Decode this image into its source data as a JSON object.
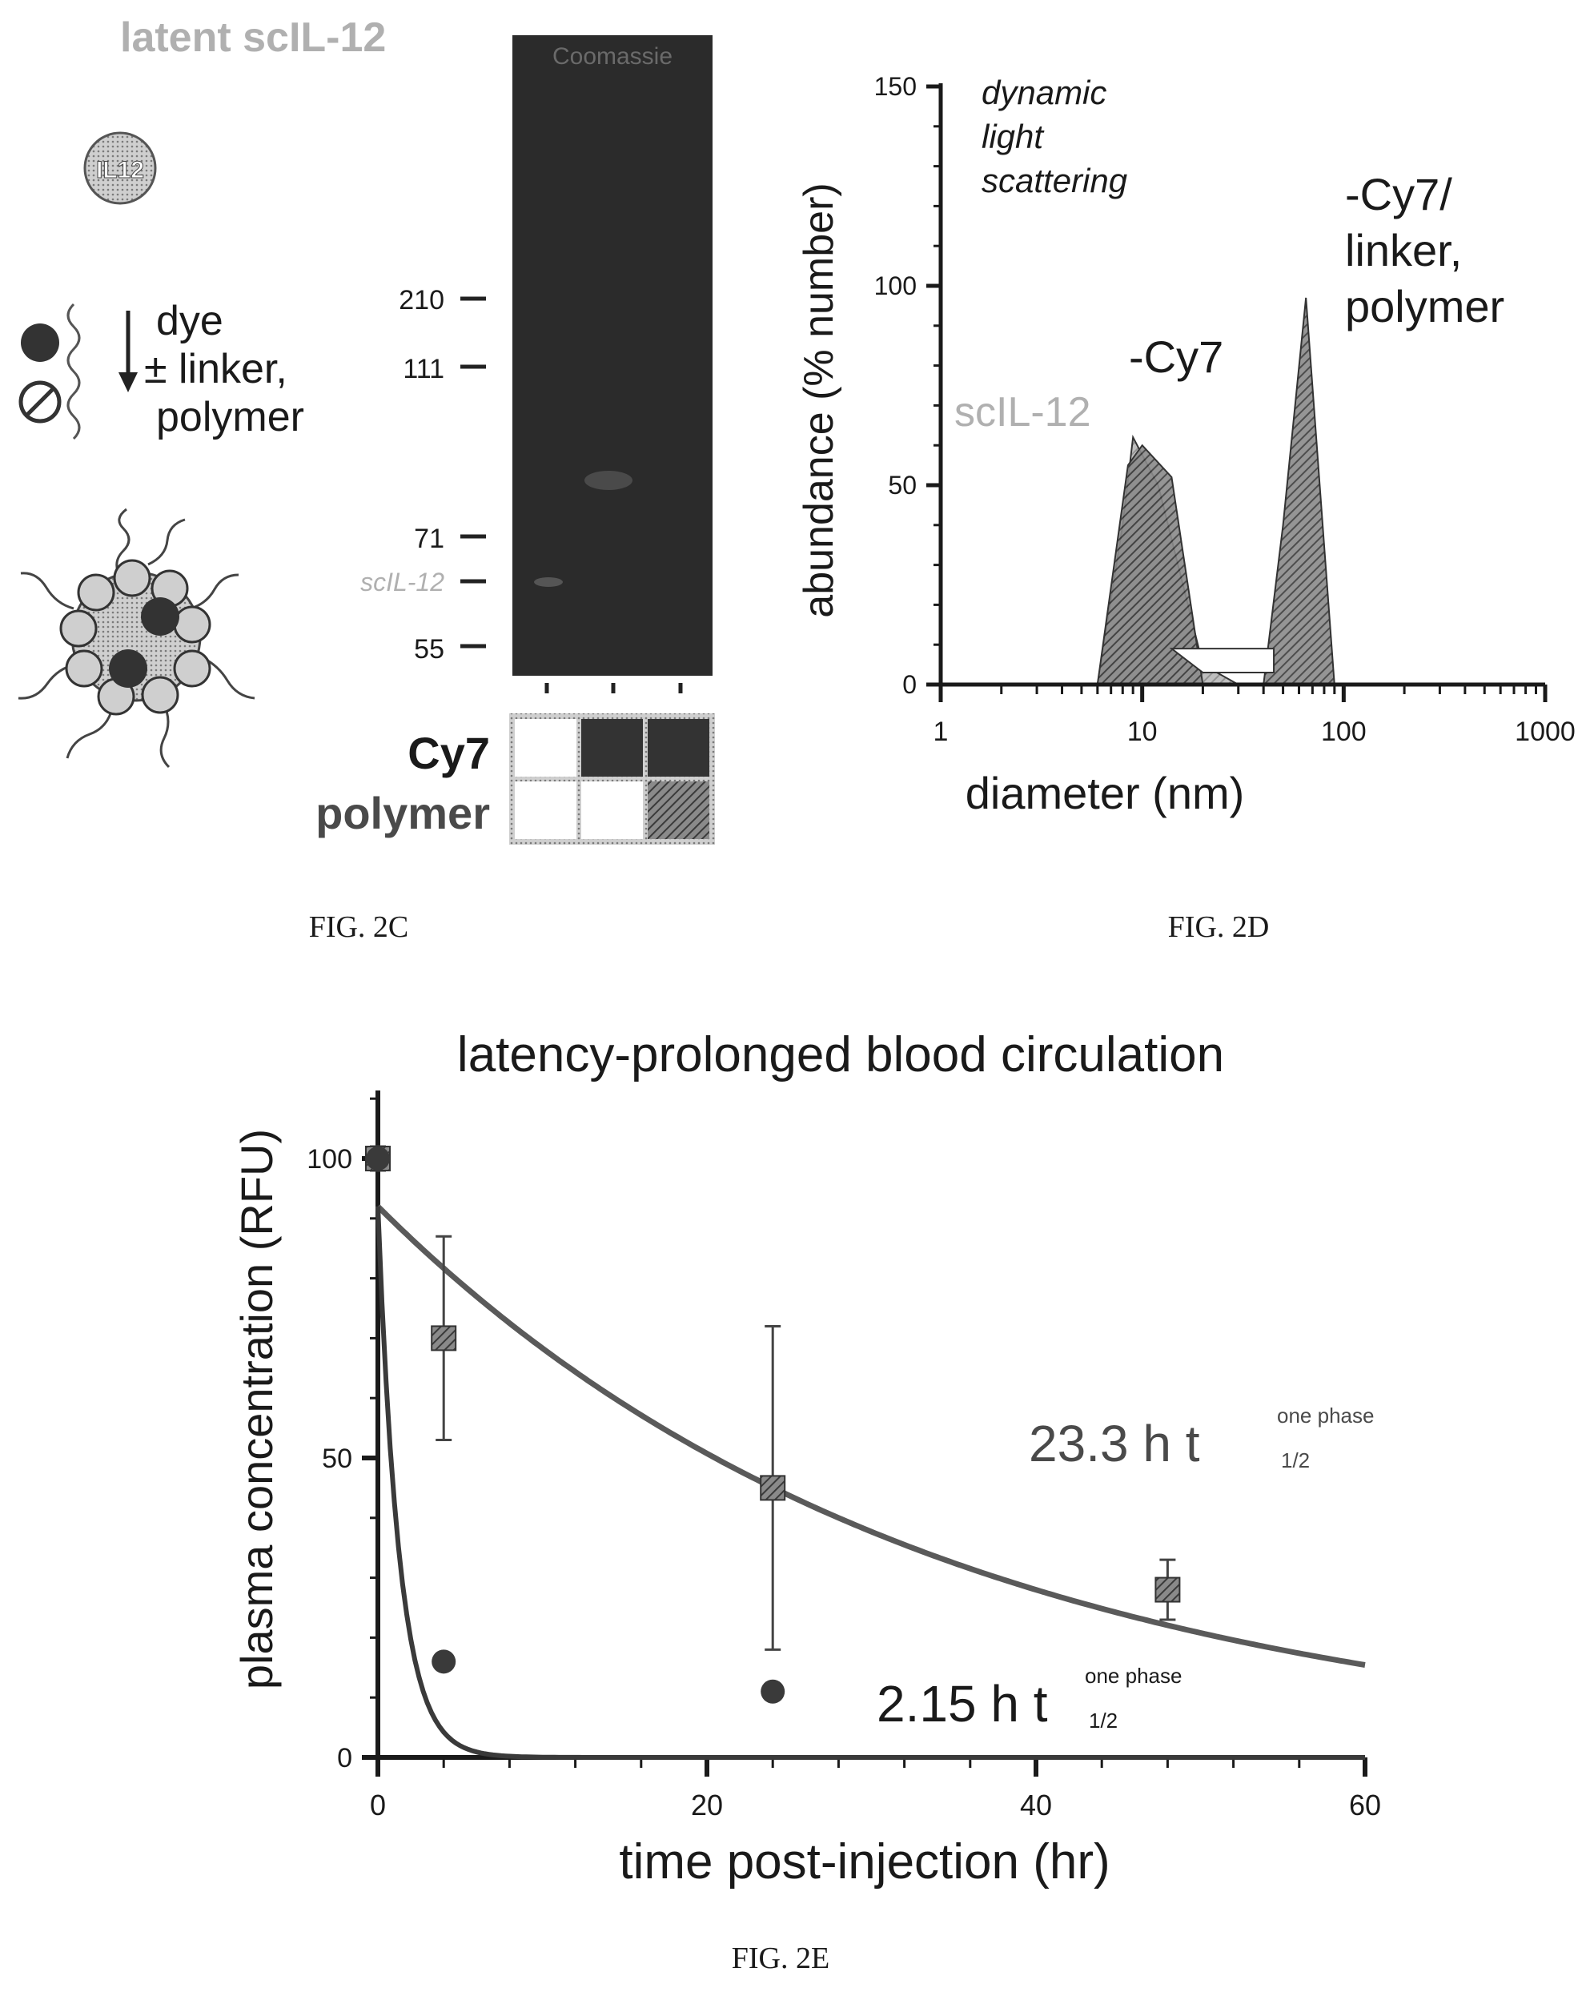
{
  "colors": {
    "ink": "#1a1a1a",
    "gel": "#2b2b2b",
    "light_label": "#b0b0b0",
    "peak_fill": "#4a4a4a",
    "hatch": "#6a6a6a",
    "series_polymer": "#5a5a5a",
    "series_free": "#3a3a3a"
  },
  "fig2c": {
    "caption": "FIG. 2C",
    "title": "latent scIL-12",
    "gel_header": "Coomassie",
    "il12_badge": "IL12",
    "reaction_text": [
      "dye",
      "± linker,",
      "polymer"
    ],
    "markers": [
      {
        "label": "210",
        "highlight": false
      },
      {
        "label": "111",
        "highlight": false
      },
      {
        "label": "71",
        "highlight": false
      },
      {
        "label": "scIL-12",
        "highlight": true
      },
      {
        "label": "55",
        "highlight": false
      }
    ],
    "row_labels": [
      "Cy7",
      "polymer"
    ],
    "lanes": [
      {
        "cy7": false,
        "polymer": false
      },
      {
        "cy7": true,
        "polymer": false
      },
      {
        "cy7": true,
        "polymer": true
      }
    ]
  },
  "chart_data": [
    {
      "type": "area",
      "figure": "FIG. 2D",
      "annotation": [
        "dynamic",
        "light",
        "scattering"
      ],
      "xlabel": "diameter (nm)",
      "ylabel": "abundance (% number)",
      "x_scale": "log",
      "xlim": [
        1,
        1000
      ],
      "ylim": [
        0,
        150
      ],
      "x_ticks": [
        1,
        10,
        100,
        1000
      ],
      "y_ticks": [
        0,
        50,
        100,
        150
      ],
      "grid": false,
      "series": [
        {
          "name": "scIL-12",
          "x": [
            6,
            8,
            9,
            12,
            20,
            30
          ],
          "y": [
            0,
            40,
            62,
            50,
            5,
            0
          ]
        },
        {
          "name": "-Cy7",
          "x": [
            6,
            8.5,
            10,
            14,
            20
          ],
          "y": [
            0,
            55,
            60,
            52,
            0
          ]
        },
        {
          "name": "-Cy7/ linker, polymer",
          "x": [
            40,
            50,
            65,
            80,
            90
          ],
          "y": [
            0,
            40,
            97,
            35,
            0
          ]
        }
      ]
    },
    {
      "type": "line",
      "figure": "FIG. 2E",
      "title": "latency-prolonged blood circulation",
      "xlabel": "time post-injection (hr)",
      "ylabel": "plasma concentration (RFU)",
      "xlim": [
        0,
        60
      ],
      "ylim": [
        0,
        100
      ],
      "x_ticks": [
        0,
        20,
        40,
        60
      ],
      "y_ticks": [
        0,
        50,
        100
      ],
      "grid": false,
      "series": [
        {
          "name": "23.3 h",
          "label_main": "23.3 h t",
          "label_sup": "one phase",
          "label_sub": "1/2",
          "marker": "square",
          "points": [
            {
              "x": 0,
              "y": 100,
              "err": 2
            },
            {
              "x": 4,
              "y": 70,
              "err": 17
            },
            {
              "x": 24,
              "y": 45,
              "err": 27
            },
            {
              "x": 48,
              "y": 28,
              "err": 5
            }
          ],
          "fit": {
            "y0": 92,
            "plateau": 0,
            "half_life": 23.3
          }
        },
        {
          "name": "2.15 h",
          "label_main": "2.15 h t",
          "label_sup": "one phase",
          "label_sub": "1/2",
          "marker": "circle",
          "points": [
            {
              "x": 0,
              "y": 100,
              "err": 0
            },
            {
              "x": 4,
              "y": 16,
              "err": 0
            },
            {
              "x": 24,
              "y": 11,
              "err": 0
            }
          ],
          "fit": {
            "y0": 92,
            "plateau": 0,
            "half_life": 0.9
          }
        }
      ]
    }
  ]
}
